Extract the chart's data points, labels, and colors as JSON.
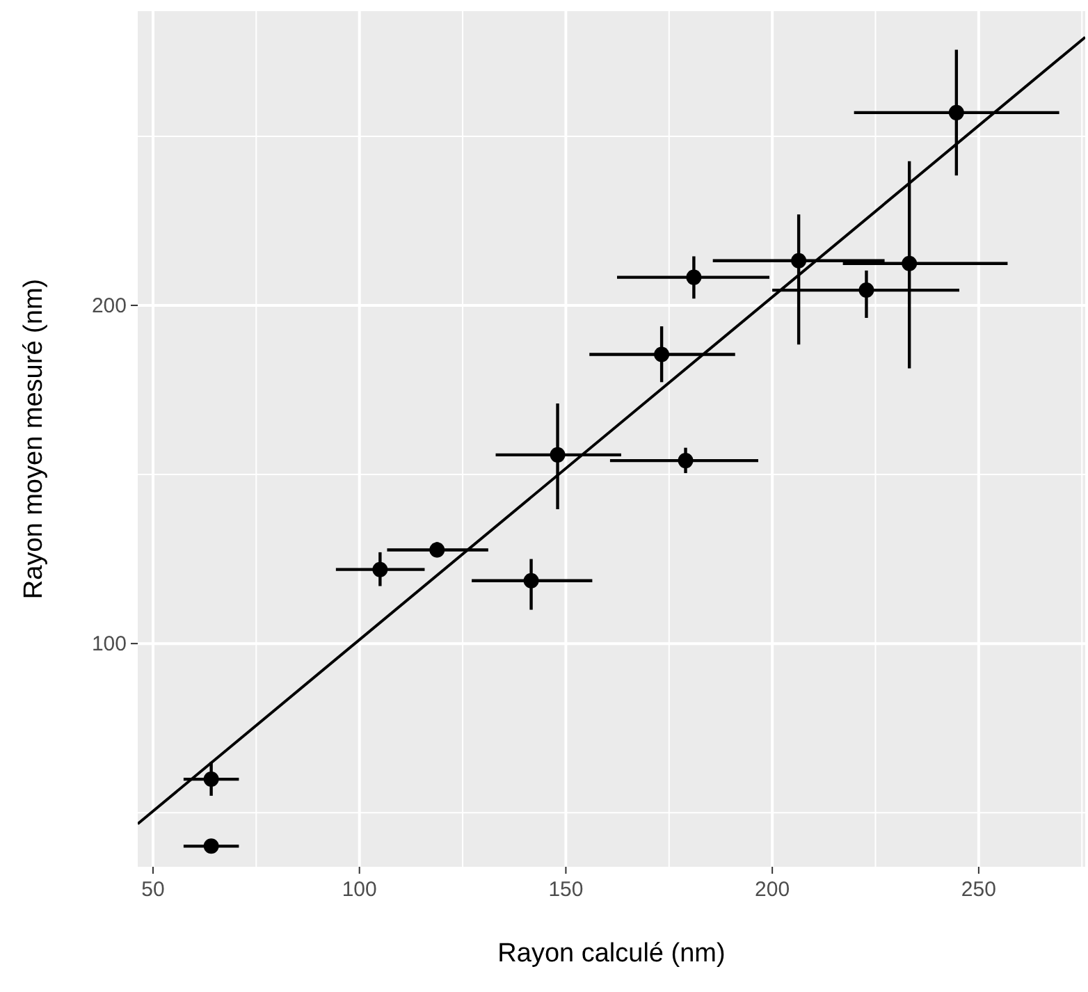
{
  "chart_data": {
    "type": "scatter",
    "xlabel": "Rayon calculé (nm)",
    "ylabel": "Rayon moyen mesuré (nm)",
    "xlim": [
      46.3,
      275.8
    ],
    "ylim": [
      34,
      287
    ],
    "xticks": [
      50,
      100,
      150,
      200,
      250
    ],
    "yticks": [
      100,
      200
    ],
    "grid": true,
    "marker": "circle",
    "series": [
      {
        "color": "#000000",
        "x": [
          64.1,
          64.1,
          105,
          118.8,
          141.6,
          148,
          173.2,
          179,
          181,
          206.4,
          222.8,
          233.2,
          244.6
        ],
        "values": [
          59.9,
          40.1,
          121.9,
          127.7,
          118.6,
          155.8,
          185.5,
          154.1,
          208.3,
          213.2,
          204.5,
          212.4,
          257
        ],
        "xerrors": [
          [
            57.4,
            70.8
          ],
          [
            57.4,
            70.8
          ],
          [
            94.3,
            115.8
          ],
          [
            106.7,
            131.2
          ],
          [
            127.2,
            156.4
          ],
          [
            133,
            163.4
          ],
          [
            155.7,
            191
          ],
          [
            160.7,
            196.6
          ],
          [
            162.4,
            199.3
          ],
          [
            185.6,
            227.2
          ],
          [
            200,
            245.3
          ],
          [
            217.1,
            257
          ],
          [
            219.8,
            269.5
          ]
        ],
        "errors": [
          [
            55,
            65
          ],
          null,
          [
            117,
            127
          ],
          [
            125.5,
            130
          ],
          [
            110,
            125
          ],
          [
            139.7,
            171
          ],
          [
            177.3,
            193.8
          ],
          [
            150.4,
            157.9
          ],
          [
            202,
            214.5
          ],
          [
            188.4,
            226.9
          ],
          [
            196.3,
            210.3
          ],
          [
            181.4,
            242.6
          ],
          [
            238.4,
            275.6
          ]
        ]
      },
      {
        "type": "line",
        "color": "#000000",
        "x": [
          46.3,
          275.8
        ],
        "values": [
          46.7,
          279.3
        ],
        "marker": "none"
      }
    ]
  }
}
